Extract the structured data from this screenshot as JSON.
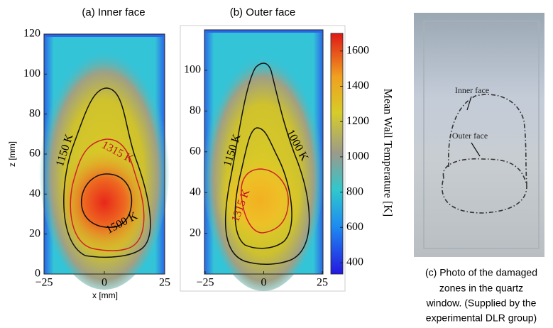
{
  "panels": [
    {
      "title": "(a) Inner face",
      "x_label": "x [mm]",
      "y_label": "z [mm]",
      "x_ticks": [
        "−25",
        "0",
        "25"
      ],
      "y_ticks": [
        "0",
        "20",
        "40",
        "60",
        "80",
        "100",
        "120"
      ],
      "contour_labels": [
        "1150 K",
        "1315 K",
        "1500 K"
      ]
    },
    {
      "title": "(b) Outer face",
      "x_ticks": [
        "−25",
        "0",
        "25"
      ],
      "y_ticks": [
        "20",
        "40",
        "60",
        "80",
        "100"
      ],
      "contour_labels": [
        "1150 K",
        "1000 K",
        "1315 K"
      ],
      "colorbar": {
        "label": "Mean Wall Temperature [K]",
        "ticks": [
          "400",
          "600",
          "800",
          "1000",
          "1200",
          "1400",
          "1600"
        ]
      }
    },
    {
      "photo_labels": [
        "Inner face",
        "Outer face"
      ],
      "caption": [
        "(c) Photo of the damaged",
        "zones in the quartz",
        "window. (Supplied by the",
        "experimental DLR group)"
      ]
    }
  ]
}
